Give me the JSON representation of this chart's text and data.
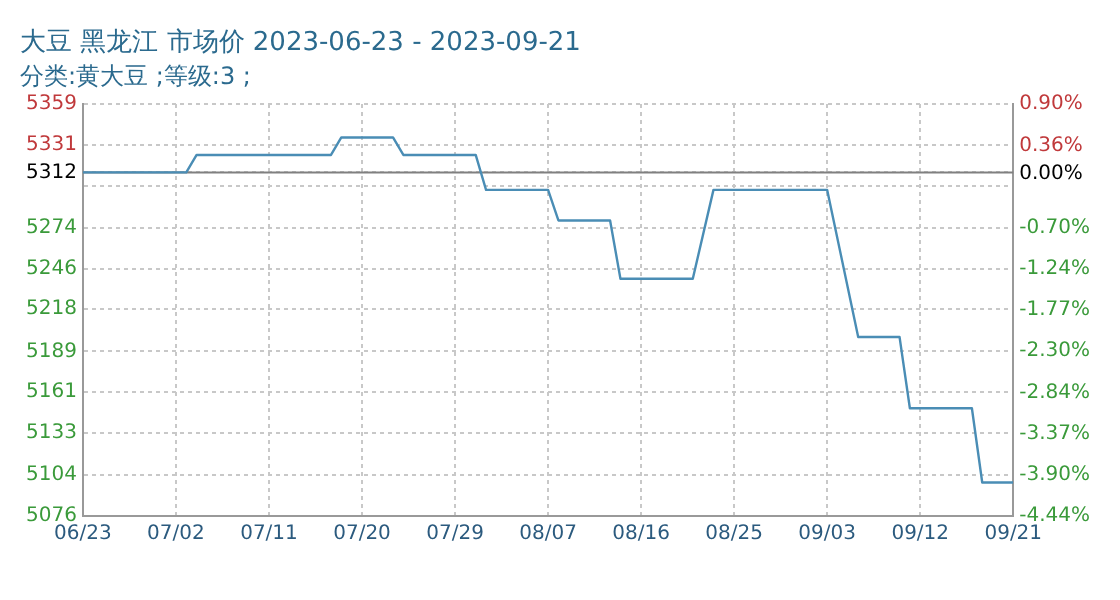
{
  "chart_data": {
    "type": "line",
    "title": "大豆 黑龙江 市场价 2023-06-23 - 2023-09-21",
    "subtitle": "分类:黄大豆 ;等级:3 ;",
    "x": [
      "2023-06-23",
      "2023-07-03",
      "2023-07-04",
      "2023-07-17",
      "2023-07-18",
      "2023-07-23",
      "2023-07-24",
      "2023-07-31",
      "2023-08-01",
      "2023-08-07",
      "2023-08-08",
      "2023-08-13",
      "2023-08-14",
      "2023-08-21",
      "2023-08-23",
      "2023-09-03",
      "2023-09-06",
      "2023-09-10",
      "2023-09-11",
      "2023-09-17",
      "2023-09-18",
      "2023-09-21"
    ],
    "series": [
      {
        "color": "#4a8db5",
        "values": [
          5312,
          5312,
          5324,
          5324,
          5336,
          5336,
          5324,
          5324,
          5300,
          5300,
          5279,
          5279,
          5239,
          5239,
          5300,
          5300,
          5199,
          5199,
          5150,
          5150,
          5099,
          5099
        ]
      }
    ],
    "xlim": [
      "2023-06-23",
      "2023-09-21"
    ],
    "xticks": [
      {
        "value": "2023-06-23",
        "label": "06/23"
      },
      {
        "value": "2023-07-02",
        "label": "07/02"
      },
      {
        "value": "2023-07-11",
        "label": "07/11"
      },
      {
        "value": "2023-07-20",
        "label": "07/20"
      },
      {
        "value": "2023-07-29",
        "label": "07/29"
      },
      {
        "value": "2023-08-07",
        "label": "08/07"
      },
      {
        "value": "2023-08-16",
        "label": "08/16"
      },
      {
        "value": "2023-08-25",
        "label": "08/25"
      },
      {
        "value": "2023-09-03",
        "label": "09/03"
      },
      {
        "value": "2023-09-12",
        "label": "09/12"
      },
      {
        "value": "2023-09-21",
        "label": "09/21"
      }
    ],
    "ylim": [
      5076,
      5359
    ],
    "yticks": [
      5076,
      5104,
      5133,
      5161,
      5189,
      5218,
      5246,
      5274,
      {
        "value": 5303,
        "label": null
      },
      5312,
      5331,
      5359
    ],
    "y2lim": [
      -4.44,
      0.9
    ],
    "y2ticks": [
      {
        "value": -4.44,
        "label": "-4.44%"
      },
      {
        "value": -3.9,
        "label": "-3.90%"
      },
      {
        "value": -3.37,
        "label": "-3.37%"
      },
      {
        "value": -2.84,
        "label": "-2.84%"
      },
      {
        "value": -2.3,
        "label": "-2.30%"
      },
      {
        "value": -1.77,
        "label": "-1.77%"
      },
      {
        "value": -1.24,
        "label": "-1.24%"
      },
      {
        "value": -0.7,
        "label": "-0.70%"
      },
      {
        "value": 0,
        "label": "0.00%"
      },
      {
        "value": 0.36,
        "label": "0.36%"
      },
      {
        "value": 0.9,
        "label": "0.90%"
      }
    ],
    "ref_lines": [
      {
        "axis": "y",
        "value": 5312,
        "color": "#808080"
      }
    ],
    "grid": true,
    "legend": false,
    "marker": "none",
    "line_style": "solid"
  }
}
